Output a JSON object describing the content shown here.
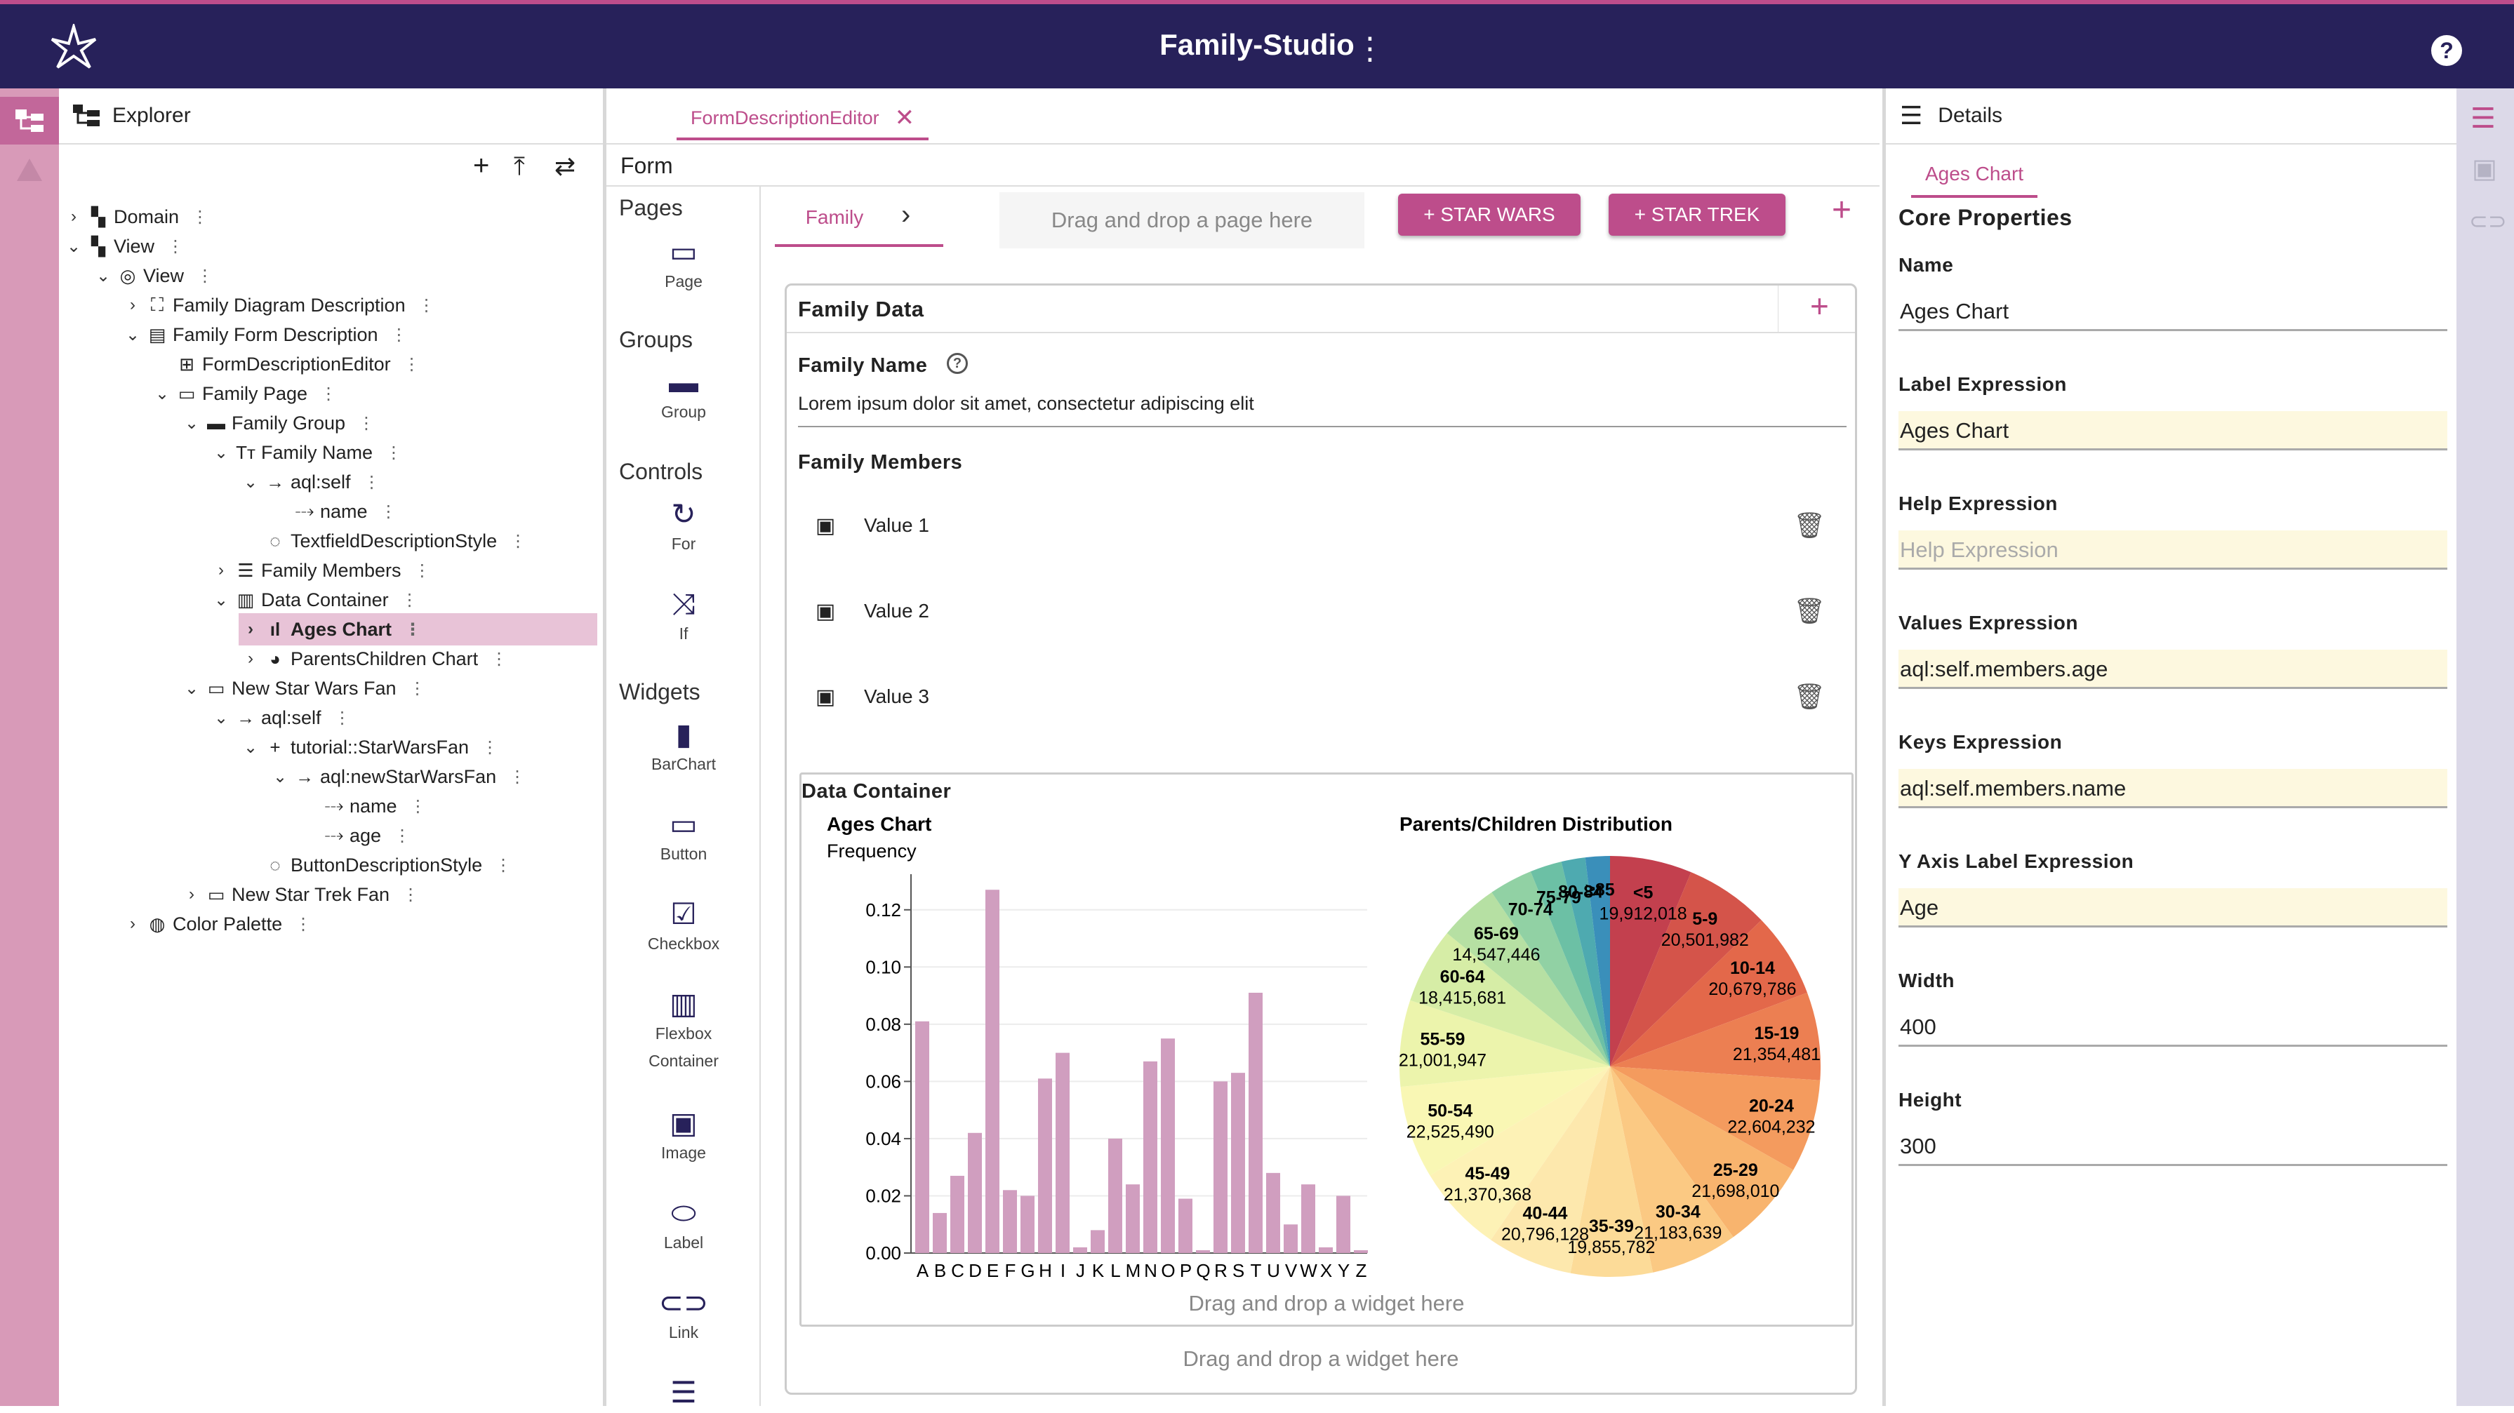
{
  "app": {
    "title": "Family-Studio"
  },
  "explorer": {
    "title": "Explorer",
    "tree": [
      {
        "label": "Domain",
        "icon": "domain-icon",
        "depth": 0,
        "chev": "›"
      },
      {
        "label": "View",
        "icon": "view-icon",
        "depth": 0,
        "chev": "⌄"
      },
      {
        "label": "View",
        "icon": "eye-icon",
        "depth": 1,
        "chev": "⌄"
      },
      {
        "label": "Family Diagram Description",
        "icon": "diagram-icon",
        "depth": 2,
        "chev": "›"
      },
      {
        "label": "Family Form Description",
        "icon": "form-icon",
        "depth": 2,
        "chev": "⌄"
      },
      {
        "label": "FormDescriptionEditor",
        "icon": "grid-icon",
        "depth": 3,
        "chev": ""
      },
      {
        "label": "Family Page",
        "icon": "page-icon",
        "depth": 3,
        "chev": "⌄"
      },
      {
        "label": "Family Group",
        "icon": "group-icon",
        "depth": 4,
        "chev": "⌄"
      },
      {
        "label": "Family Name",
        "icon": "text-icon",
        "depth": 5,
        "chev": "⌄"
      },
      {
        "label": "aql:self",
        "icon": "arrow-icon",
        "depth": 6,
        "chev": "⌄"
      },
      {
        "label": "name",
        "icon": "attribute-icon",
        "depth": 7,
        "chev": ""
      },
      {
        "label": "TextfieldDescriptionStyle",
        "icon": "style-icon",
        "depth": 6,
        "chev": ""
      },
      {
        "label": "Family Members",
        "icon": "list-icon",
        "depth": 5,
        "chev": "›"
      },
      {
        "label": "Data Container",
        "icon": "container-icon",
        "depth": 5,
        "chev": "⌄"
      },
      {
        "label": "Ages Chart",
        "icon": "bar-chart-icon",
        "depth": 6,
        "chev": "›",
        "selected": true
      },
      {
        "label": "ParentsChildren Chart",
        "icon": "pie-chart-icon",
        "depth": 6,
        "chev": "›"
      },
      {
        "label": "New Star Wars Fan",
        "icon": "button-icon",
        "depth": 4,
        "chev": "⌄"
      },
      {
        "label": "aql:self",
        "icon": "arrow-icon",
        "depth": 5,
        "chev": "⌄"
      },
      {
        "label": "tutorial::StarWarsFan",
        "icon": "plus-icon",
        "depth": 6,
        "chev": "⌄"
      },
      {
        "label": "aql:newStarWarsFan",
        "icon": "arrow-icon",
        "depth": 7,
        "chev": "⌄"
      },
      {
        "label": "name",
        "icon": "attribute-icon",
        "depth": 8,
        "chev": ""
      },
      {
        "label": "age",
        "icon": "attribute-icon",
        "depth": 8,
        "chev": ""
      },
      {
        "label": "ButtonDescriptionStyle",
        "icon": "style-icon",
        "depth": 6,
        "chev": ""
      },
      {
        "label": "New Star Trek Fan",
        "icon": "button-icon",
        "depth": 4,
        "chev": "›"
      },
      {
        "label": "Color Palette",
        "icon": "palette-icon",
        "depth": 2,
        "chev": "›"
      }
    ]
  },
  "editor": {
    "tab_label": "FormDescriptionEditor",
    "form_label": "Form",
    "palette": {
      "pages_title": "Pages",
      "groups_title": "Groups",
      "controls_title": "Controls",
      "widgets_title": "Widgets",
      "page": "Page",
      "group": "Group",
      "for": "For",
      "if": "If",
      "barchart": "BarChart",
      "button": "Button",
      "checkbox": "Checkbox",
      "flexbox_1": "Flexbox",
      "flexbox_2": "Container",
      "image": "Image",
      "label": "Label",
      "link": "Link"
    },
    "page_tab": "Family",
    "page_drop": "Drag and drop a page here",
    "star_wars_btn": "+ STAR WARS",
    "star_trek_btn": "+ STAR TREK",
    "group_title": "Family Data",
    "family_name_label": "Family Name",
    "family_name_value": "Lorem ipsum dolor sit amet, consectetur adipiscing elit",
    "members_label": "Family Members",
    "members": [
      "Value 1",
      "Value 2",
      "Value 3"
    ],
    "container_title": "Data Container",
    "container_drop": "Drag and drop a widget here",
    "group_drop": "Drag and drop a widget here"
  },
  "chart_data": [
    {
      "type": "bar",
      "title": "Ages Chart",
      "ylabel": "Frequency",
      "ylim": [
        0,
        0.13
      ],
      "yticks": [
        "0.12",
        "0.10",
        "0.08",
        "0.06",
        "0.04",
        "0.02",
        "0.00"
      ],
      "categories": [
        "A",
        "B",
        "C",
        "D",
        "E",
        "F",
        "G",
        "H",
        "I",
        "J",
        "K",
        "L",
        "M",
        "N",
        "O",
        "P",
        "Q",
        "R",
        "S",
        "T",
        "U",
        "V",
        "W",
        "X",
        "Y",
        "Z"
      ],
      "values": [
        0.081,
        0.014,
        0.027,
        0.042,
        0.127,
        0.022,
        0.02,
        0.061,
        0.07,
        0.002,
        0.008,
        0.04,
        0.024,
        0.067,
        0.075,
        0.019,
        0.001,
        0.06,
        0.063,
        0.091,
        0.028,
        0.01,
        0.024,
        0.002,
        0.02,
        0.001
      ],
      "color": "#d09ebf"
    },
    {
      "type": "pie",
      "title": "Parents/Children Distribution",
      "slices": [
        {
          "label": "<5",
          "value": 19912018,
          "color": "#c3404e"
        },
        {
          "label": "5-9",
          "value": 20501982,
          "color": "#d4544a"
        },
        {
          "label": "10-14",
          "value": 20679786,
          "color": "#e3684a"
        },
        {
          "label": "15-19",
          "value": 21354481,
          "color": "#ec7f52"
        },
        {
          "label": "20-24",
          "value": 22604232,
          "color": "#f49b5e"
        },
        {
          "label": "25-29",
          "value": 21698010,
          "color": "#f8b46e"
        },
        {
          "label": "30-34",
          "value": 21183639,
          "color": "#fbc983"
        },
        {
          "label": "35-39",
          "value": 19855782,
          "color": "#fcdb98"
        },
        {
          "label": "40-44",
          "value": 20796128,
          "color": "#fde8ad"
        },
        {
          "label": "45-49",
          "value": 21370368,
          "color": "#fdf2b6"
        },
        {
          "label": "50-54",
          "value": 22525490,
          "color": "#f9f7b4"
        },
        {
          "label": "55-59",
          "value": 21001947,
          "color": "#ecf4ac"
        },
        {
          "label": "60-64",
          "value": 18415681,
          "color": "#d6eda6"
        },
        {
          "label": "65-69",
          "value": 14547446,
          "color": "#b6e0a3"
        },
        {
          "label": "70-74",
          "value": 10587721,
          "color": "#91d1a4"
        },
        {
          "label": "75-79",
          "value": 7730129,
          "color": "#6cc0a5"
        },
        {
          "label": "80-84",
          "value": 5811429,
          "color": "#4eaab0"
        },
        {
          "label": "≥85",
          "value": 5938752,
          "color": "#3a8fba"
        }
      ]
    }
  ],
  "details": {
    "title": "Details",
    "tab": "Ages Chart",
    "section": "Core Properties",
    "name_label": "Name",
    "name_value": "Ages Chart",
    "label_expr_label": "Label Expression",
    "label_expr_value": "Ages Chart",
    "help_expr_label": "Help Expression",
    "help_expr_placeholder": "Help Expression",
    "values_expr_label": "Values Expression",
    "values_expr_value": "aql:self.members.age",
    "keys_expr_label": "Keys Expression",
    "keys_expr_value": "aql:self.members.name",
    "yaxis_label": "Y Axis Label Expression",
    "yaxis_value": "Age",
    "width_label": "Width",
    "width_value": "400",
    "height_label": "Height",
    "height_value": "300"
  },
  "colors": {
    "header": "#27215a",
    "accent": "#bd4d8b",
    "selected": "#e8c3d7",
    "field_bg": "#fdf8df"
  }
}
